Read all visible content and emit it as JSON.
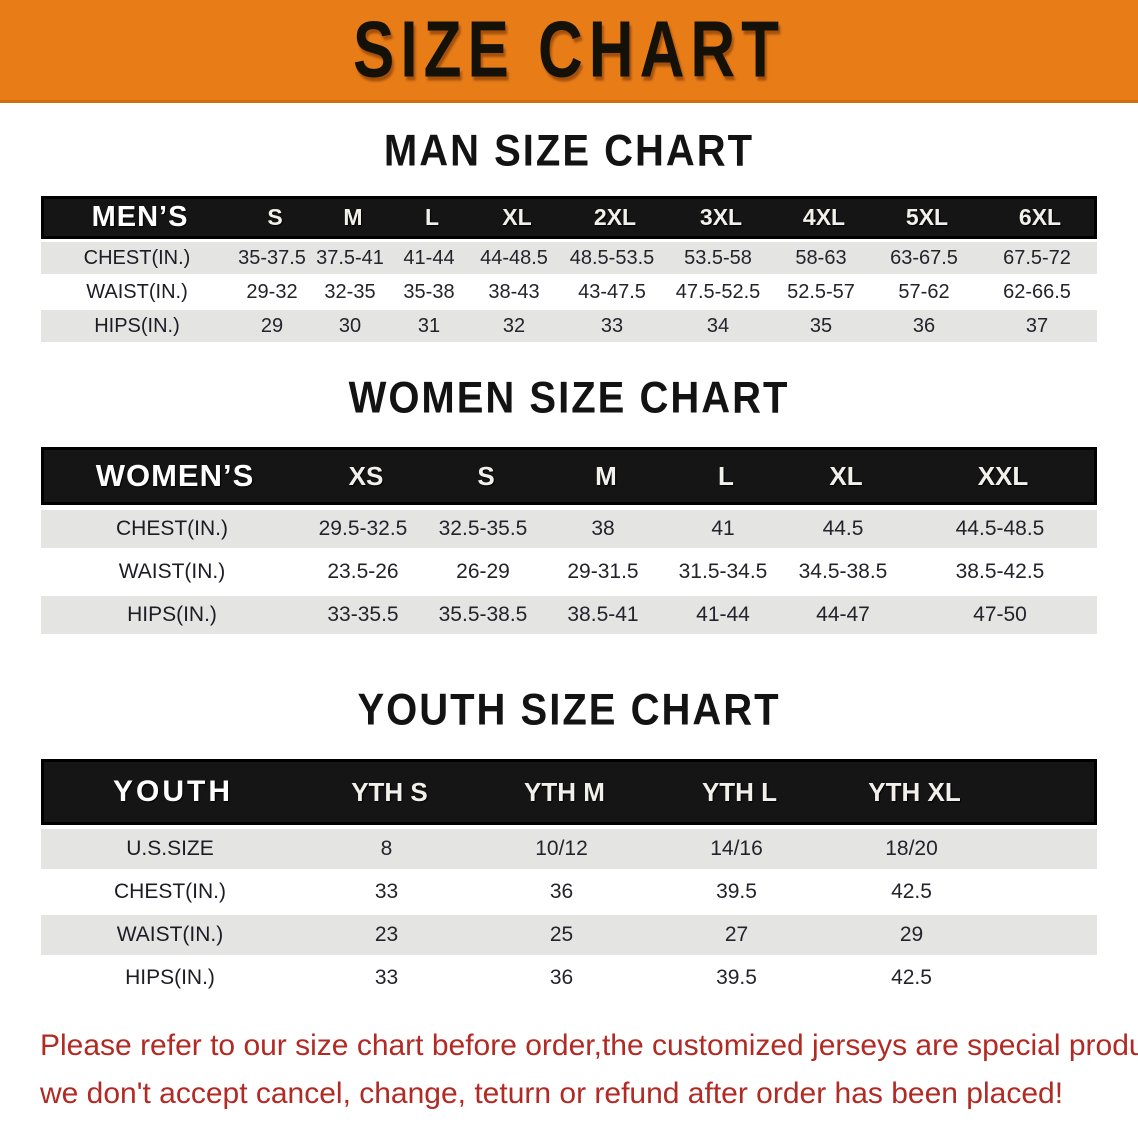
{
  "banner": {
    "title": "SIZE CHART"
  },
  "colors": {
    "banner_orange": "#e87d18",
    "notice_red": "#b12a24",
    "header_band_black": "#151515",
    "stripe_gray": "#e4e4e3"
  },
  "sections": [
    {
      "heading": "MAN SIZE CHART",
      "table": {
        "header_label": "MEN’S",
        "columns": [
          "S",
          "M",
          "L",
          "XL",
          "2XL",
          "3XL",
          "4XL",
          "5XL",
          "6XL"
        ],
        "rows": [
          {
            "label": "CHEST(IN.)",
            "values": [
              "35-37.5",
              "37.5-41",
              "41-44",
              "44-48.5",
              "48.5-53.5",
              "53.5-58",
              "58-63",
              "63-67.5",
              "67.5-72"
            ]
          },
          {
            "label": "WAIST(IN.)",
            "values": [
              "29-32",
              "32-35",
              "35-38",
              "38-43",
              "43-47.5",
              "47.5-52.5",
              "52.5-57",
              "57-62",
              "62-66.5"
            ]
          },
          {
            "label": "HIPS(IN.)",
            "values": [
              "29",
              "30",
              "31",
              "32",
              "33",
              "34",
              "35",
              "36",
              "37"
            ]
          }
        ]
      }
    },
    {
      "heading": "WOMEN SIZE CHART",
      "table": {
        "header_label": "WOMEN’S",
        "columns": [
          "XS",
          "S",
          "M",
          "L",
          "XL",
          "XXL"
        ],
        "rows": [
          {
            "label": "CHEST(IN.)",
            "values": [
              "29.5-32.5",
              "32.5-35.5",
              "38",
              "41",
              "44.5",
              "44.5-48.5"
            ]
          },
          {
            "label": "WAIST(IN.)",
            "values": [
              "23.5-26",
              "26-29",
              "29-31.5",
              "31.5-34.5",
              "34.5-38.5",
              "38.5-42.5"
            ]
          },
          {
            "label": "HIPS(IN.)",
            "values": [
              "33-35.5",
              "35.5-38.5",
              "38.5-41",
              "41-44",
              "44-47",
              "47-50"
            ]
          }
        ]
      }
    },
    {
      "heading": "YOUTH SIZE CHART",
      "table": {
        "header_label": "YOUTH",
        "columns": [
          "YTH S",
          "YTH M",
          "YTH L",
          "YTH XL"
        ],
        "rows": [
          {
            "label": "U.S.SIZE",
            "values": [
              "8",
              "10/12",
              "14/16",
              "18/20"
            ]
          },
          {
            "label": "CHEST(IN.)",
            "values": [
              "33",
              "36",
              "39.5",
              "42.5"
            ]
          },
          {
            "label": "WAIST(IN.)",
            "values": [
              "23",
              "25",
              "27",
              "29"
            ]
          },
          {
            "label": "HIPS(IN.)",
            "values": [
              "33",
              "36",
              "39.5",
              "42.5"
            ]
          }
        ]
      }
    }
  ],
  "footer": {
    "lines": [
      "Please refer to our size chart before order,the customized jerseys are special products,",
      "we don't accept cancel, change, teturn or refund after order has been placed!"
    ]
  }
}
